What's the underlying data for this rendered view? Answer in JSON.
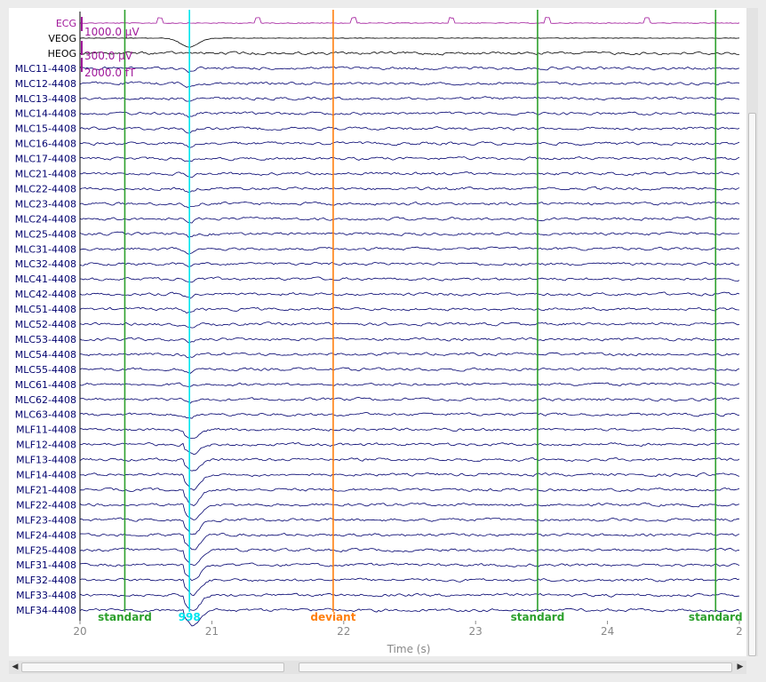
{
  "channels": [
    {
      "name": "ECG",
      "color": "#a0189a"
    },
    {
      "name": "VEOG",
      "color": "#000000"
    },
    {
      "name": "HEOG",
      "color": "#000000"
    },
    {
      "name": "MLC11-4408",
      "color": "#00006e"
    },
    {
      "name": "MLC12-4408",
      "color": "#00006e"
    },
    {
      "name": "MLC13-4408",
      "color": "#00006e"
    },
    {
      "name": "MLC14-4408",
      "color": "#00006e"
    },
    {
      "name": "MLC15-4408",
      "color": "#00006e"
    },
    {
      "name": "MLC16-4408",
      "color": "#00006e"
    },
    {
      "name": "MLC17-4408",
      "color": "#00006e"
    },
    {
      "name": "MLC21-4408",
      "color": "#00006e"
    },
    {
      "name": "MLC22-4408",
      "color": "#00006e"
    },
    {
      "name": "MLC23-4408",
      "color": "#00006e"
    },
    {
      "name": "MLC24-4408",
      "color": "#00006e"
    },
    {
      "name": "MLC25-4408",
      "color": "#00006e"
    },
    {
      "name": "MLC31-4408",
      "color": "#00006e"
    },
    {
      "name": "MLC32-4408",
      "color": "#00006e"
    },
    {
      "name": "MLC41-4408",
      "color": "#00006e"
    },
    {
      "name": "MLC42-4408",
      "color": "#00006e"
    },
    {
      "name": "MLC51-4408",
      "color": "#00006e"
    },
    {
      "name": "MLC52-4408",
      "color": "#00006e"
    },
    {
      "name": "MLC53-4408",
      "color": "#00006e"
    },
    {
      "name": "MLC54-4408",
      "color": "#00006e"
    },
    {
      "name": "MLC55-4408",
      "color": "#00006e"
    },
    {
      "name": "MLC61-4408",
      "color": "#00006e"
    },
    {
      "name": "MLC62-4408",
      "color": "#00006e"
    },
    {
      "name": "MLC63-4408",
      "color": "#00006e"
    },
    {
      "name": "MLF11-4408",
      "color": "#00006e"
    },
    {
      "name": "MLF12-4408",
      "color": "#00006e"
    },
    {
      "name": "MLF13-4408",
      "color": "#00006e"
    },
    {
      "name": "MLF14-4408",
      "color": "#00006e"
    },
    {
      "name": "MLF21-4408",
      "color": "#00006e"
    },
    {
      "name": "MLF22-4408",
      "color": "#00006e"
    },
    {
      "name": "MLF23-4408",
      "color": "#00006e"
    },
    {
      "name": "MLF24-4408",
      "color": "#00006e"
    },
    {
      "name": "MLF25-4408",
      "color": "#00006e"
    },
    {
      "name": "MLF31-4408",
      "color": "#00006e"
    },
    {
      "name": "MLF32-4408",
      "color": "#00006e"
    },
    {
      "name": "MLF33-4408",
      "color": "#00006e"
    },
    {
      "name": "MLF34-4408",
      "color": "#00006e"
    }
  ],
  "scale_bars": [
    {
      "label": "1000.0 µV",
      "color": "#a0189a"
    },
    {
      "label": "300.0 µV",
      "color": "#a0189a"
    },
    {
      "label": "2000.0 fT",
      "color": "#a0189a"
    }
  ],
  "events": [
    {
      "label": "standard",
      "time": 20.34,
      "color": "#2ca02c"
    },
    {
      "label": "998",
      "time": 20.83,
      "color": "#00e5ee"
    },
    {
      "label": "deviant",
      "time": 21.92,
      "color": "#ff7f0e"
    },
    {
      "label": "standard",
      "time": 23.47,
      "color": "#2ca02c"
    },
    {
      "label": "standard",
      "time": 24.82,
      "color": "#2ca02c"
    }
  ],
  "axis": {
    "xlabel": "Time (s)",
    "xlim": [
      20,
      25
    ],
    "ticks": [
      "20",
      "21",
      "22",
      "23",
      "24",
      "2"
    ]
  },
  "scrollbars": {
    "left_arrow": "◀",
    "right_arrow": "▶"
  }
}
